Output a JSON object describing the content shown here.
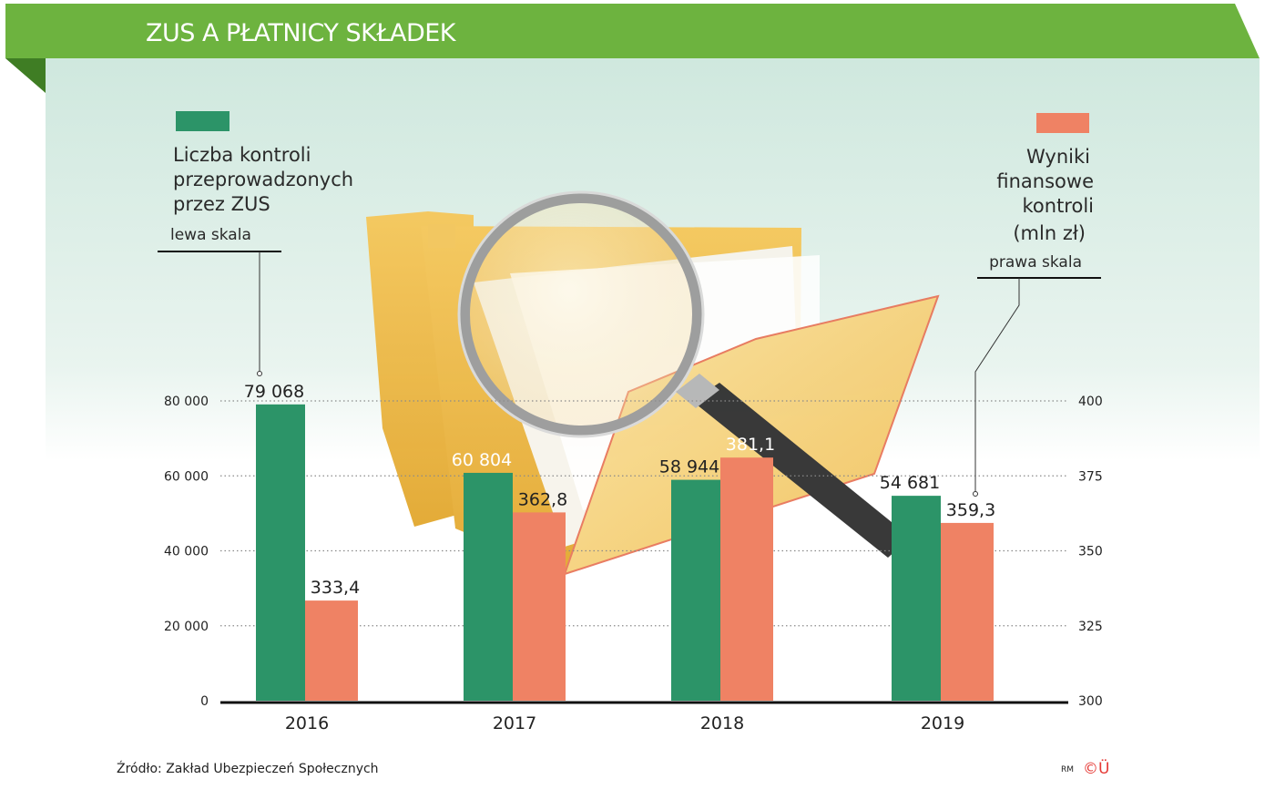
{
  "header": {
    "title": "ZUS A PŁATNICY SKŁADEK"
  },
  "colors": {
    "header_green": "#6db33f",
    "series_green": "#2c9468",
    "series_salmon": "#ef8264"
  },
  "legend": {
    "left": {
      "lines": [
        "Liczba kontroli",
        "przeprowadzonych",
        "przez ZUS"
      ],
      "scale_label": "lewa skala"
    },
    "right": {
      "lines": [
        "Wyniki",
        "finansowe",
        "kontroli",
        "(mln zł)"
      ],
      "scale_label": "prawa skala"
    }
  },
  "chart_data": {
    "type": "bar",
    "categories": [
      "2016",
      "2017",
      "2018",
      "2019"
    ],
    "series": [
      {
        "name": "Liczba kontroli przeprowadzonych przez ZUS",
        "axis": "left",
        "values": [
          79068,
          60804,
          58944,
          54681
        ],
        "labels": [
          "79 068",
          "60 804",
          "58 944",
          "54 681"
        ]
      },
      {
        "name": "Wyniki finansowe kontroli (mln zł)",
        "axis": "right",
        "values": [
          333.4,
          362.8,
          381.1,
          359.3
        ],
        "labels": [
          "333,4",
          "362,8",
          "381,1",
          "359,3"
        ]
      }
    ],
    "left_axis": {
      "range": [
        0,
        80000
      ],
      "ticks": [
        0,
        20000,
        40000,
        60000,
        80000
      ],
      "tick_labels": [
        "0",
        "20 000",
        "40 000",
        "60 000",
        "80 000"
      ]
    },
    "right_axis": {
      "range": [
        300,
        400
      ],
      "ticks": [
        300,
        325,
        350,
        375,
        400
      ],
      "tick_labels": [
        "300",
        "325",
        "350",
        "375",
        "400"
      ]
    },
    "grid": true
  },
  "footer": {
    "source": "Źródło: Zakład Ubezpieczeń Społecznych",
    "credit_small": "RM",
    "credit_mark": "©Ü"
  }
}
